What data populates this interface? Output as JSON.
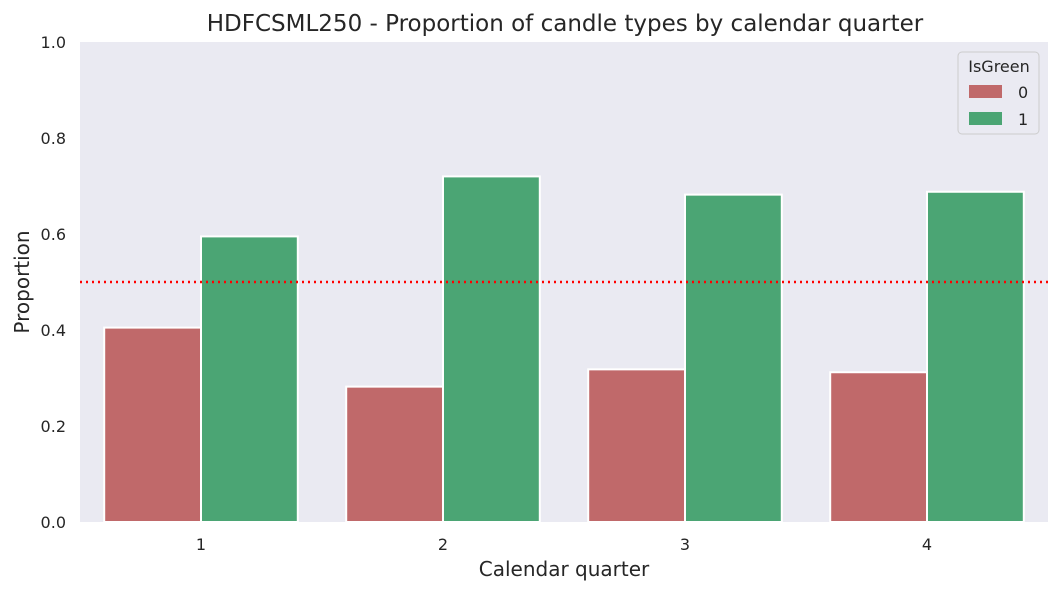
{
  "chart_data": {
    "type": "bar",
    "title": "HDFCSML250 - Proportion of candle types by calendar quarter",
    "xlabel": "Calendar quarter",
    "ylabel": "Proportion",
    "categories": [
      "1",
      "2",
      "3",
      "4"
    ],
    "series": [
      {
        "name": "0",
        "color": "#c0696a",
        "values": [
          0.405,
          0.282,
          0.318,
          0.312
        ]
      },
      {
        "name": "1",
        "color": "#4ba574",
        "values": [
          0.595,
          0.72,
          0.682,
          0.688
        ]
      }
    ],
    "ylim": [
      0,
      1.0
    ],
    "yticks": [
      "0.0",
      "0.2",
      "0.4",
      "0.6",
      "0.8",
      "1.0"
    ],
    "reference_line": {
      "y": 0.5,
      "color": "#ff0000",
      "style": "dotted"
    },
    "legend": {
      "title": "IsGreen",
      "position": "top-right"
    },
    "grid": false,
    "background": "#eaeaf2"
  }
}
